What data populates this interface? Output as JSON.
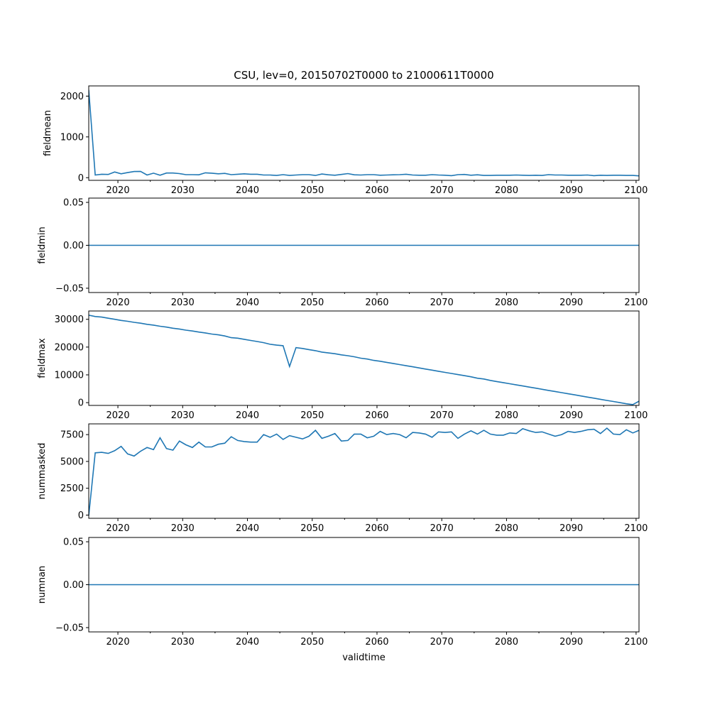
{
  "chart_data": {
    "type": "line",
    "title": "CSU, lev=0, 20150702T0000 to 21000611T0000",
    "xlabel": "validtime",
    "x_domain": [
      2015.5,
      2100.45
    ],
    "x_ticks": [
      2020,
      2030,
      2040,
      2050,
      2060,
      2070,
      2080,
      2090,
      2100
    ],
    "x_minor_ticks": [
      2025,
      2035,
      2045,
      2055,
      2065,
      2075,
      2085,
      2095
    ],
    "x_tick_labels": [
      "2020",
      "2030",
      "2040",
      "2050",
      "2060",
      "2070",
      "2080",
      "2090",
      "2100"
    ],
    "line_color": "#1f77b4",
    "panels": [
      {
        "ylabel": "fieldmean",
        "ylim": [
          -65,
          2250
        ],
        "yticks": [
          0,
          1000,
          2000
        ],
        "ytick_labels": [
          "0",
          "1000",
          "2000"
        ],
        "x": [
          2015.5,
          2016.5,
          2017.5,
          2018.5,
          2019.5,
          2020.5,
          2021.5,
          2022.5,
          2023.5,
          2024.5,
          2025.5,
          2026.5,
          2027.5,
          2028.5,
          2029.5,
          2030.5,
          2031.5,
          2032.5,
          2033.5,
          2034.5,
          2035.5,
          2036.5,
          2037.5,
          2038.5,
          2039.5,
          2040.5,
          2041.5,
          2042.5,
          2043.5,
          2044.5,
          2045.5,
          2046.5,
          2047.5,
          2048.5,
          2049.5,
          2050.5,
          2051.5,
          2052.5,
          2053.5,
          2054.5,
          2055.5,
          2056.5,
          2057.5,
          2058.5,
          2059.5,
          2060.5,
          2061.5,
          2062.5,
          2063.5,
          2064.5,
          2065.5,
          2066.5,
          2067.5,
          2068.5,
          2069.5,
          2070.5,
          2071.5,
          2072.5,
          2073.5,
          2074.5,
          2075.5,
          2076.5,
          2077.5,
          2078.5,
          2079.5,
          2080.5,
          2081.5,
          2082.5,
          2083.5,
          2084.5,
          2085.5,
          2086.5,
          2087.5,
          2088.5,
          2089.5,
          2090.5,
          2091.5,
          2092.5,
          2093.5,
          2094.5,
          2095.5,
          2096.5,
          2097.5,
          2098.5,
          2099.5,
          2100.45
        ],
        "y": [
          2150,
          65,
          85,
          80,
          140,
          95,
          125,
          150,
          155,
          65,
          110,
          60,
          115,
          115,
          100,
          75,
          75,
          70,
          120,
          110,
          95,
          105,
          75,
          85,
          95,
          85,
          85,
          65,
          65,
          55,
          75,
          55,
          65,
          75,
          75,
          55,
          90,
          70,
          60,
          80,
          100,
          70,
          65,
          75,
          75,
          60,
          65,
          70,
          75,
          85,
          65,
          60,
          60,
          75,
          65,
          60,
          50,
          75,
          80,
          60,
          70,
          55,
          55,
          60,
          60,
          60,
          65,
          60,
          55,
          60,
          55,
          75,
          65,
          65,
          60,
          60,
          60,
          65,
          50,
          60,
          55,
          60,
          60,
          55,
          55,
          45
        ]
      },
      {
        "ylabel": "fieldmin",
        "ylim": [
          -0.055,
          0.055
        ],
        "yticks": [
          -0.05,
          0.0,
          0.05
        ],
        "ytick_labels": [
          "−0.05",
          "0.00",
          "0.05"
        ],
        "x": [
          2015.5,
          2100.45
        ],
        "y": [
          0,
          0
        ]
      },
      {
        "ylabel": "fieldmax",
        "ylim": [
          -1000,
          33000
        ],
        "yticks": [
          0,
          10000,
          20000,
          30000
        ],
        "ytick_labels": [
          "0",
          "10000",
          "20000",
          "30000"
        ],
        "x": [
          2015.5,
          2016.5,
          2017.5,
          2018.5,
          2019.5,
          2020.5,
          2021.5,
          2022.5,
          2023.5,
          2024.5,
          2025.5,
          2026.5,
          2027.5,
          2028.5,
          2029.5,
          2030.5,
          2031.5,
          2032.5,
          2033.5,
          2034.5,
          2035.5,
          2036.5,
          2037.5,
          2038.5,
          2039.5,
          2040.5,
          2041.5,
          2042.5,
          2043.5,
          2044.5,
          2045.5,
          2046.5,
          2047.5,
          2048.5,
          2049.5,
          2050.5,
          2051.5,
          2052.5,
          2053.5,
          2054.5,
          2055.5,
          2056.5,
          2057.5,
          2058.5,
          2059.5,
          2060.5,
          2061.5,
          2062.5,
          2063.5,
          2064.5,
          2065.5,
          2066.5,
          2067.5,
          2068.5,
          2069.5,
          2070.5,
          2071.5,
          2072.5,
          2073.5,
          2074.5,
          2075.5,
          2076.5,
          2077.5,
          2078.5,
          2079.5,
          2080.5,
          2081.5,
          2082.5,
          2083.5,
          2084.5,
          2085.5,
          2086.5,
          2087.5,
          2088.5,
          2089.5,
          2090.5,
          2091.5,
          2092.5,
          2093.5,
          2094.5,
          2095.5,
          2096.5,
          2097.5,
          2098.5,
          2099.5,
          2100.45
        ],
        "y": [
          31500,
          31000,
          30800,
          30400,
          30000,
          29600,
          29300,
          28900,
          28600,
          28200,
          27900,
          27500,
          27200,
          26800,
          26500,
          26100,
          25800,
          25400,
          25100,
          24700,
          24400,
          24000,
          23400,
          23200,
          22800,
          22400,
          22000,
          21600,
          21000,
          20700,
          20500,
          13000,
          19800,
          19500,
          19100,
          18700,
          18200,
          17900,
          17600,
          17200,
          16900,
          16500,
          16000,
          15700,
          15200,
          14900,
          14500,
          14100,
          13700,
          13300,
          12900,
          12500,
          12100,
          11700,
          11300,
          10900,
          10500,
          10100,
          9700,
          9300,
          8800,
          8500,
          8000,
          7600,
          7200,
          6800,
          6400,
          6000,
          5600,
          5200,
          4800,
          4400,
          4000,
          3600,
          3200,
          2800,
          2400,
          2000,
          1600,
          1200,
          800,
          400,
          0,
          -400,
          -700,
          500
        ]
      },
      {
        "ylabel": "nummasked",
        "ylim": [
          -300,
          8500
        ],
        "yticks": [
          0,
          2500,
          5000,
          7500
        ],
        "ytick_labels": [
          "0",
          "2500",
          "5000",
          "7500"
        ],
        "x": [
          2015.5,
          2016.5,
          2017.5,
          2018.5,
          2019.5,
          2020.5,
          2021.5,
          2022.5,
          2023.5,
          2024.5,
          2025.5,
          2026.5,
          2027.5,
          2028.5,
          2029.5,
          2030.5,
          2031.5,
          2032.5,
          2033.5,
          2034.5,
          2035.5,
          2036.5,
          2037.5,
          2038.5,
          2039.5,
          2040.5,
          2041.5,
          2042.5,
          2043.5,
          2044.5,
          2045.5,
          2046.5,
          2047.5,
          2048.5,
          2049.5,
          2050.5,
          2051.5,
          2052.5,
          2053.5,
          2054.5,
          2055.5,
          2056.5,
          2057.5,
          2058.5,
          2059.5,
          2060.5,
          2061.5,
          2062.5,
          2063.5,
          2064.5,
          2065.5,
          2066.5,
          2067.5,
          2068.5,
          2069.5,
          2070.5,
          2071.5,
          2072.5,
          2073.5,
          2074.5,
          2075.5,
          2076.5,
          2077.5,
          2078.5,
          2079.5,
          2080.5,
          2081.5,
          2082.5,
          2083.5,
          2084.5,
          2085.5,
          2086.5,
          2087.5,
          2088.5,
          2089.5,
          2090.5,
          2091.5,
          2092.5,
          2093.5,
          2094.5,
          2095.5,
          2096.5,
          2097.5,
          2098.5,
          2099.5,
          2100.45
        ],
        "y": [
          -50,
          5800,
          5850,
          5750,
          6000,
          6400,
          5700,
          5500,
          5950,
          6300,
          6100,
          7200,
          6200,
          6050,
          6900,
          6550,
          6300,
          6800,
          6350,
          6350,
          6600,
          6700,
          7300,
          6950,
          6850,
          6800,
          6800,
          7500,
          7250,
          7550,
          7050,
          7400,
          7250,
          7100,
          7350,
          7900,
          7150,
          7350,
          7600,
          6900,
          6950,
          7550,
          7550,
          7200,
          7350,
          7800,
          7500,
          7600,
          7500,
          7200,
          7700,
          7650,
          7550,
          7250,
          7750,
          7700,
          7750,
          7150,
          7550,
          7850,
          7550,
          7900,
          7550,
          7450,
          7450,
          7650,
          7600,
          8050,
          7850,
          7700,
          7750,
          7550,
          7350,
          7500,
          7800,
          7700,
          7800,
          7950,
          8000,
          7600,
          8100,
          7550,
          7500,
          7950,
          7650,
          7900
        ]
      },
      {
        "ylabel": "numnan",
        "ylim": [
          -0.055,
          0.055
        ],
        "yticks": [
          -0.05,
          0.0,
          0.05
        ],
        "ytick_labels": [
          "−0.05",
          "0.00",
          "0.05"
        ],
        "x": [
          2015.5,
          2100.45
        ],
        "y": [
          0,
          0
        ]
      }
    ]
  }
}
